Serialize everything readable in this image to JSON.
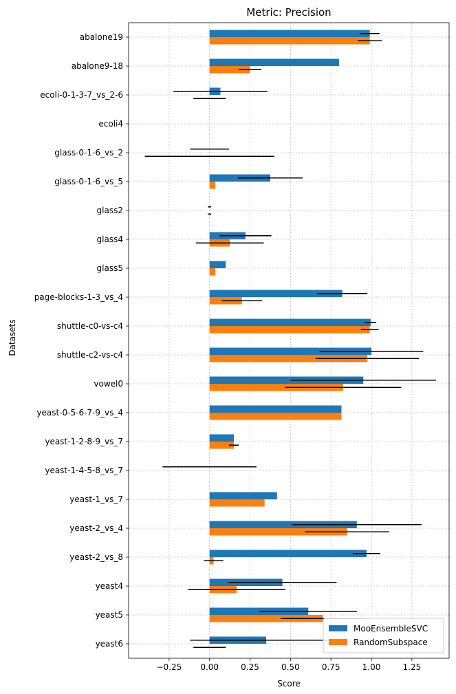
{
  "chart_data": {
    "type": "bar",
    "orientation": "horizontal",
    "title": "Metric: Precision",
    "xlabel": "Score",
    "ylabel": "Datasets",
    "xlim": [
      -0.5,
      1.48
    ],
    "xticks": [
      "−0.25",
      "0.00",
      "0.25",
      "0.50",
      "0.75",
      "1.00",
      "1.25"
    ],
    "xtick_values": [
      -0.25,
      0,
      0.25,
      0.5,
      0.75,
      1.0,
      1.25
    ],
    "grid": true,
    "legend_position": "lower-right",
    "categories": [
      "abalone19",
      "abalone9-18",
      "ecoli-0-1-3-7_vs_2-6",
      "ecoli4",
      "glass-0-1-6_vs_2",
      "glass-0-1-6_vs_5",
      "glass2",
      "glass4",
      "glass5",
      "page-blocks-1-3_vs_4",
      "shuttle-c0-vs-c4",
      "shuttle-c2-vs-c4",
      "vowel0",
      "yeast-0-5-6-7-9_vs_4",
      "yeast-1-2-8-9_vs_7",
      "yeast-1-4-5-8_vs_7",
      "yeast-1_vs_7",
      "yeast-2_vs_4",
      "yeast-2_vs_8",
      "yeast4",
      "yeast5",
      "yeast6"
    ],
    "series": [
      {
        "name": "MooEnsembleSVC",
        "color": "#1f77b4",
        "values": [
          0.99,
          0.8,
          0.067,
          0.0,
          0.0,
          0.375,
          0.0,
          0.222,
          0.1,
          0.82,
          0.995,
          1.0,
          0.95,
          0.815,
          0.15,
          0.0,
          0.417,
          0.91,
          0.97,
          0.45,
          0.61,
          0.35
        ],
        "errors": [
          0.06,
          0.0,
          0.29,
          0.0,
          0.12,
          0.2,
          0.01,
          0.16,
          0.0,
          0.155,
          0.035,
          0.32,
          0.45,
          0.0,
          0.0,
          0.29,
          0.0,
          0.4,
          0.085,
          0.335,
          0.3,
          0.47
        ]
      },
      {
        "name": "RandomSubspace",
        "color": "#ff7f0e",
        "values": [
          0.99,
          0.25,
          0.0,
          0.0,
          0.0,
          0.036,
          0.0,
          0.125,
          0.036,
          0.2,
          0.99,
          0.975,
          0.825,
          0.815,
          0.15,
          0.0,
          0.34,
          0.85,
          0.025,
          0.167,
          0.7,
          0.0
        ],
        "errors": [
          0.075,
          0.07,
          0.1,
          0.0,
          0.4,
          0.0,
          0.01,
          0.21,
          0.0,
          0.125,
          0.055,
          0.32,
          0.36,
          0.0,
          0.03,
          0.0,
          0.0,
          0.26,
          0.06,
          0.3,
          0.26,
          0.1
        ]
      }
    ]
  }
}
